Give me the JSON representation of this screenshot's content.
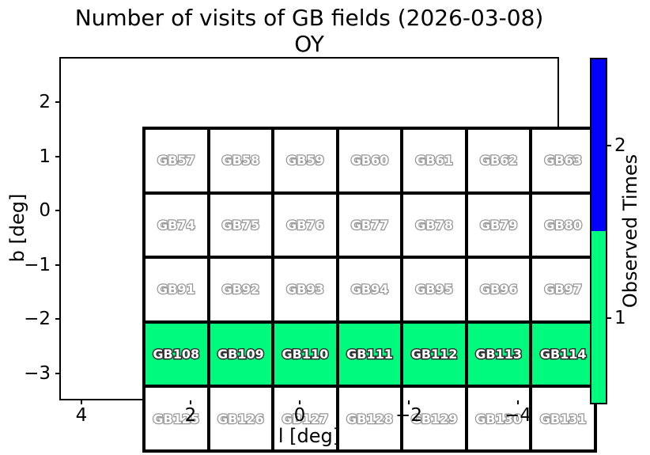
{
  "title": {
    "line1": "Number of visits of GB fields (2026-03-08)",
    "line2": "OY"
  },
  "axes": {
    "xlabel": "l [deg]",
    "ylabel": "b [deg]",
    "xtick_labels": [
      "4",
      "2",
      "0",
      "−2",
      "−4"
    ],
    "ytick_labels": [
      "2",
      "1",
      "0",
      "−1",
      "−2",
      "−3"
    ]
  },
  "colorbar": {
    "label": "Observed Times",
    "segments": [
      {
        "value": "2",
        "color": "#0000FF"
      },
      {
        "value": "1",
        "color": "#00FA7E"
      }
    ]
  },
  "colors": {
    "observed_fill": "#00FA7E",
    "unobserved_fill": "#FFFFFF",
    "observed_label_outline": "#303030",
    "unobserved_label_outline": "#969696",
    "label_fill": "#FFFFFF",
    "frame": "#000000"
  },
  "grid": {
    "rows": [
      {
        "cells": [
          "GB57",
          "GB58",
          "GB59",
          "GB60",
          "GB61",
          "GB62",
          "GB63"
        ],
        "visits": [
          0,
          0,
          0,
          0,
          0,
          0,
          0
        ]
      },
      {
        "cells": [
          "GB74",
          "GB75",
          "GB76",
          "GB77",
          "GB78",
          "GB79",
          "GB80"
        ],
        "visits": [
          0,
          0,
          0,
          0,
          0,
          0,
          0
        ]
      },
      {
        "cells": [
          "GB91",
          "GB92",
          "GB93",
          "GB94",
          "GB95",
          "GB96",
          "GB97"
        ],
        "visits": [
          0,
          0,
          0,
          0,
          0,
          0,
          0
        ]
      },
      {
        "cells": [
          "GB108",
          "GB109",
          "GB110",
          "GB111",
          "GB112",
          "GB113",
          "GB114"
        ],
        "visits": [
          1,
          1,
          1,
          1,
          1,
          1,
          1
        ]
      },
      {
        "cells": [
          "GB125",
          "GB126",
          "GB127",
          "GB128",
          "GB129",
          "GB130",
          "GB131"
        ],
        "visits": [
          0,
          0,
          0,
          0,
          0,
          0,
          0
        ]
      }
    ]
  },
  "chart_data": {
    "type": "heatmap",
    "title": "Number of visits of GB fields (2026-03-08)",
    "subtitle": "OY",
    "xlabel": "l [deg]",
    "ylabel": "b [deg]",
    "x_axis_inverted": true,
    "xticks": [
      4,
      2,
      0,
      -2,
      -4
    ],
    "yticks": [
      2,
      1,
      0,
      -1,
      -2,
      -3
    ],
    "grid_shape": [
      5,
      7
    ],
    "fields": [
      [
        "GB57",
        "GB58",
        "GB59",
        "GB60",
        "GB61",
        "GB62",
        "GB63"
      ],
      [
        "GB74",
        "GB75",
        "GB76",
        "GB77",
        "GB78",
        "GB79",
        "GB80"
      ],
      [
        "GB91",
        "GB92",
        "GB93",
        "GB94",
        "GB95",
        "GB96",
        "GB97"
      ],
      [
        "GB108",
        "GB109",
        "GB110",
        "GB111",
        "GB112",
        "GB113",
        "GB114"
      ],
      [
        "GB125",
        "GB126",
        "GB127",
        "GB128",
        "GB129",
        "GB130",
        "GB131"
      ]
    ],
    "visits": [
      [
        0,
        0,
        0,
        0,
        0,
        0,
        0
      ],
      [
        0,
        0,
        0,
        0,
        0,
        0,
        0
      ],
      [
        0,
        0,
        0,
        0,
        0,
        0,
        0
      ],
      [
        1,
        1,
        1,
        1,
        1,
        1,
        1
      ],
      [
        0,
        0,
        0,
        0,
        0,
        0,
        0
      ]
    ],
    "colorbar": {
      "label": "Observed Times",
      "values": [
        1,
        2
      ],
      "colors": [
        "#00FA7E",
        "#0000FF"
      ],
      "range": [
        0.5,
        2.5
      ]
    },
    "legend_position": "right-colorbar",
    "grid_lines": "cell-borders-black"
  }
}
